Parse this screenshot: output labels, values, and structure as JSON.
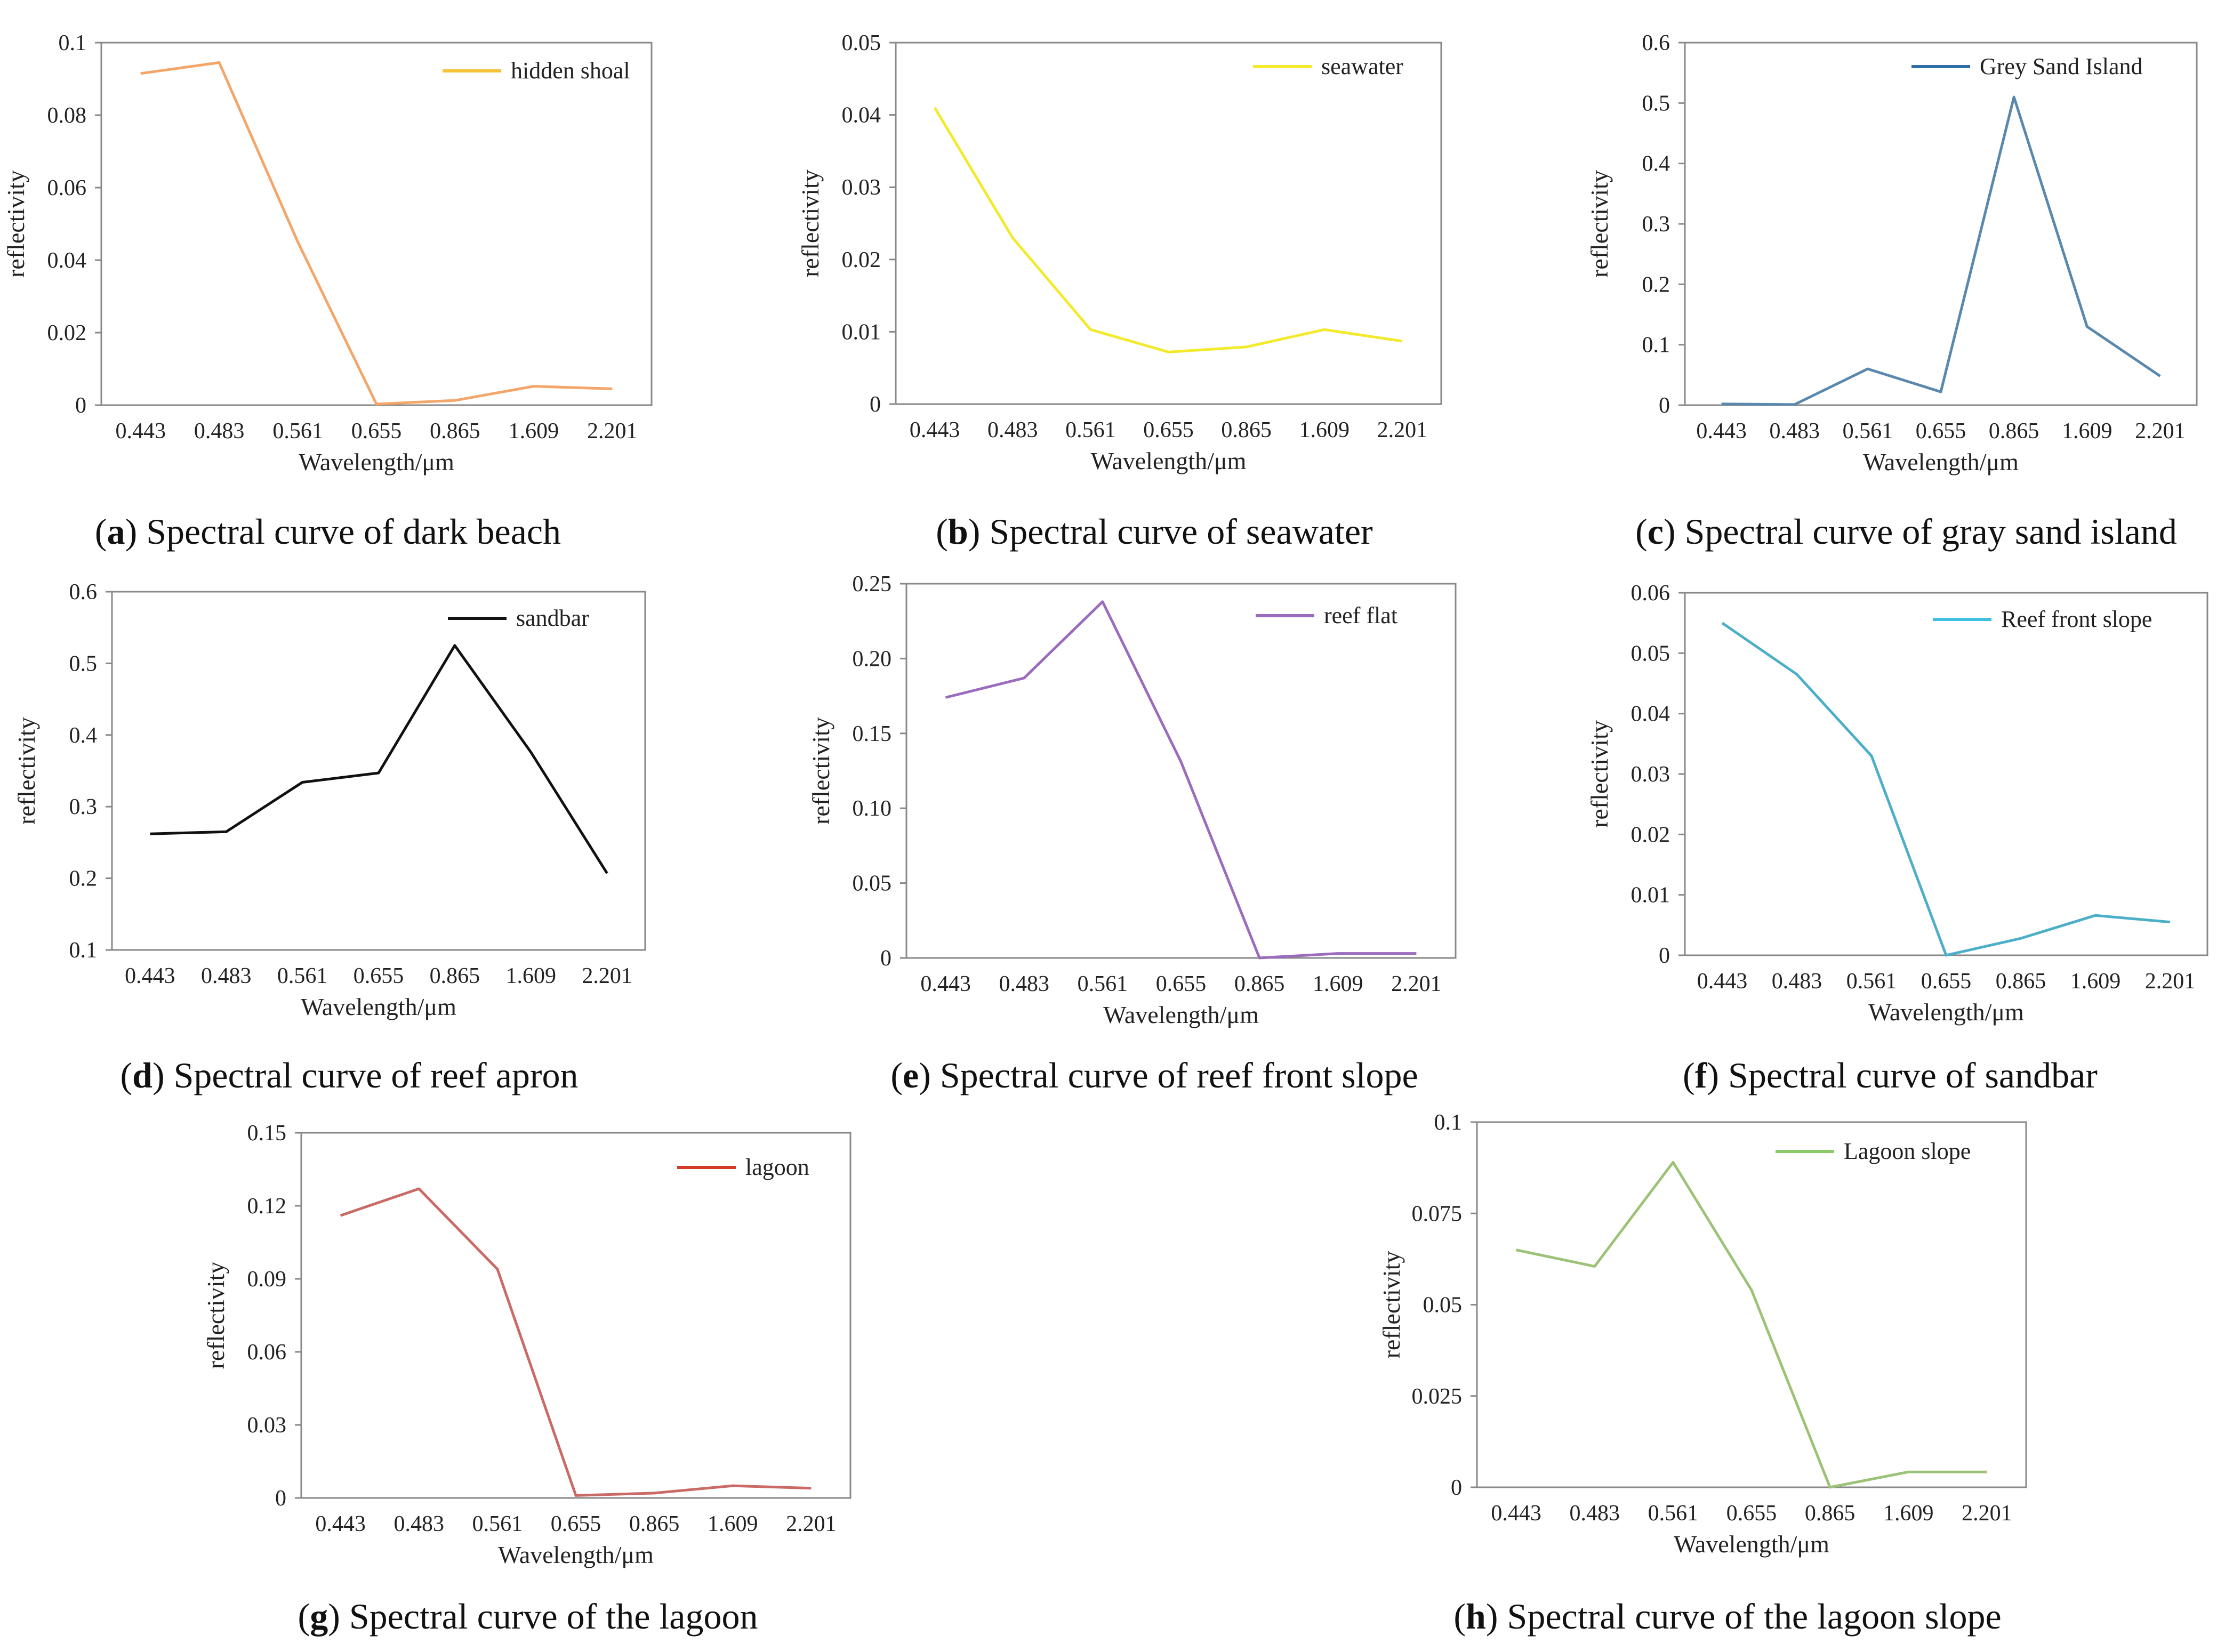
{
  "chart_data": [
    {
      "id": "a",
      "type": "line",
      "caption_letter": "a",
      "caption_text": "Spectral curve of dark beach",
      "categories": [
        "0.443",
        "0.483",
        "0.561",
        "0.655",
        "0.865",
        "1.609",
        "2.201"
      ],
      "series": [
        {
          "name": "hidden shoal",
          "values": [
            0.0915,
            0.0945,
            0.045,
            0.0003,
            0.0013,
            0.0052,
            0.0045
          ],
          "color": "#f4a56a"
        }
      ],
      "legend_line_color": "#f5c23a",
      "ylim": [
        0,
        0.1
      ],
      "yticks": [
        0,
        0.02,
        0.04,
        0.06,
        0.08,
        0.1
      ],
      "ytick_labels": [
        "0",
        "0.02",
        "0.04",
        "0.06",
        "0.08",
        "0.1"
      ],
      "xlabel": "Wavelength/μm",
      "ylabel": "reflectivity"
    },
    {
      "id": "b",
      "type": "line",
      "caption_letter": "b",
      "caption_text": "Spectral curve of seawater",
      "categories": [
        "0.443",
        "0.483",
        "0.561",
        "0.655",
        "0.865",
        "1.609",
        "2.201"
      ],
      "series": [
        {
          "name": "seawater",
          "values": [
            0.041,
            0.023,
            0.0103,
            0.0072,
            0.0079,
            0.0103,
            0.0087
          ],
          "color": "#f2ea2a"
        }
      ],
      "legend_line_color": "#f2ea2a",
      "ylim": [
        0,
        0.05
      ],
      "yticks": [
        0,
        0.01,
        0.02,
        0.03,
        0.04,
        0.05
      ],
      "ytick_labels": [
        "0",
        "0.01",
        "0.02",
        "0.03",
        "0.04",
        "0.05"
      ],
      "xlabel": "Wavelength/μm",
      "ylabel": "reflectivity"
    },
    {
      "id": "c",
      "type": "line",
      "caption_letter": "c",
      "caption_text": "Spectral curve of gray sand island",
      "categories": [
        "0.443",
        "0.483",
        "0.561",
        "0.655",
        "0.865",
        "1.609",
        "2.201"
      ],
      "series": [
        {
          "name": "Grey Sand Island",
          "values": [
            0.002,
            0.001,
            0.06,
            0.022,
            0.51,
            0.13,
            0.048
          ],
          "color": "#5a88ad"
        }
      ],
      "legend_line_color": "#2e6fa8",
      "ylim": [
        0,
        0.6
      ],
      "yticks": [
        0,
        0.1,
        0.2,
        0.3,
        0.4,
        0.5,
        0.6
      ],
      "ytick_labels": [
        "0",
        "0.1",
        "0.2",
        "0.3",
        "0.4",
        "0.5",
        "0.6"
      ],
      "xlabel": "Wavelength/μm",
      "ylabel": "reflectivity"
    },
    {
      "id": "d",
      "type": "line",
      "caption_letter": "d",
      "caption_text": "Spectral curve of reef apron",
      "categories": [
        "0.443",
        "0.483",
        "0.561",
        "0.655",
        "0.865",
        "1.609",
        "2.201"
      ],
      "series": [
        {
          "name": "sandbar",
          "values": [
            0.262,
            0.265,
            0.334,
            0.347,
            0.525,
            0.376,
            0.207
          ],
          "color": "#111111"
        }
      ],
      "legend_line_color": "#111111",
      "ylim": [
        0.1,
        0.6
      ],
      "yticks": [
        0.1,
        0.2,
        0.3,
        0.4,
        0.5,
        0.6
      ],
      "ytick_labels": [
        "0.1",
        "0.2",
        "0.3",
        "0.4",
        "0.5",
        "0.6"
      ],
      "xlabel": "Wavelength/μm",
      "ylabel": "reflectivity"
    },
    {
      "id": "e",
      "type": "line",
      "caption_letter": "e",
      "caption_text": "Spectral curve of reef front slope",
      "categories": [
        "0.443",
        "0.483",
        "0.561",
        "0.655",
        "0.865",
        "1.609",
        "2.201"
      ],
      "series": [
        {
          "name": "reef flat",
          "values": [
            0.174,
            0.187,
            0.238,
            0.131,
            0.0,
            0.003,
            0.003
          ],
          "color": "#9b6bbd"
        }
      ],
      "legend_line_color": "#9b6bbd",
      "ylim": [
        0,
        0.25
      ],
      "yticks": [
        0,
        0.05,
        0.1,
        0.15,
        0.2,
        0.25
      ],
      "ytick_labels": [
        "0",
        "0.05",
        "0.10",
        "0.15",
        "0.20",
        "0.25"
      ],
      "xlabel": "Wavelength/μm",
      "ylabel": "reflectivity"
    },
    {
      "id": "f",
      "type": "line",
      "caption_letter": "f",
      "caption_text": "Spectral curve of sandbar",
      "categories": [
        "0.443",
        "0.483",
        "0.561",
        "0.655",
        "0.865",
        "1.609",
        "2.201"
      ],
      "series": [
        {
          "name": "Reef front slope",
          "values": [
            0.055,
            0.0465,
            0.033,
            0.0,
            0.0028,
            0.0066,
            0.0055
          ],
          "color": "#4bafc8"
        }
      ],
      "legend_line_color": "#3fc0e0",
      "ylim": [
        0,
        0.06
      ],
      "yticks": [
        0,
        0.01,
        0.02,
        0.03,
        0.04,
        0.05,
        0.06
      ],
      "ytick_labels": [
        "0",
        "0.01",
        "0.02",
        "0.03",
        "0.04",
        "0.05",
        "0.06"
      ],
      "xlabel": "Wavelength/μm",
      "ylabel": "reflectivity"
    },
    {
      "id": "g",
      "type": "line",
      "caption_letter": "g",
      "caption_text": "Spectral curve of the lagoon",
      "categories": [
        "0.443",
        "0.483",
        "0.561",
        "0.655",
        "0.865",
        "1.609",
        "2.201"
      ],
      "series": [
        {
          "name": "lagoon",
          "values": [
            0.116,
            0.127,
            0.094,
            0.001,
            0.002,
            0.005,
            0.004
          ],
          "color": "#c96a66"
        }
      ],
      "legend_line_color": "#d23a2a",
      "ylim": [
        0,
        0.15
      ],
      "yticks": [
        0,
        0.03,
        0.06,
        0.09,
        0.12,
        0.15
      ],
      "ytick_labels": [
        "0",
        "0.03",
        "0.06",
        "0.09",
        "0.12",
        "0.15"
      ],
      "xlabel": "Wavelength/μm",
      "ylabel": "reflectivity"
    },
    {
      "id": "h",
      "type": "line",
      "caption_letter": "h",
      "caption_text": "Spectral curve of the lagoon slope",
      "categories": [
        "0.443",
        "0.483",
        "0.561",
        "0.655",
        "0.865",
        "1.609",
        "2.201"
      ],
      "series": [
        {
          "name": "Lagoon slope",
          "values": [
            0.065,
            0.0605,
            0.089,
            0.054,
            0.0,
            0.0042,
            0.0042
          ],
          "color": "#9cc277"
        }
      ],
      "legend_line_color": "#8cc96a",
      "ylim": [
        0,
        0.1
      ],
      "yticks": [
        0,
        0.025,
        0.05,
        0.075,
        0.1
      ],
      "ytick_labels": [
        "0",
        "0.025",
        "0.05",
        "0.075",
        "0.1"
      ],
      "xlabel": "Wavelength/μm",
      "ylabel": "reflectivity"
    }
  ]
}
